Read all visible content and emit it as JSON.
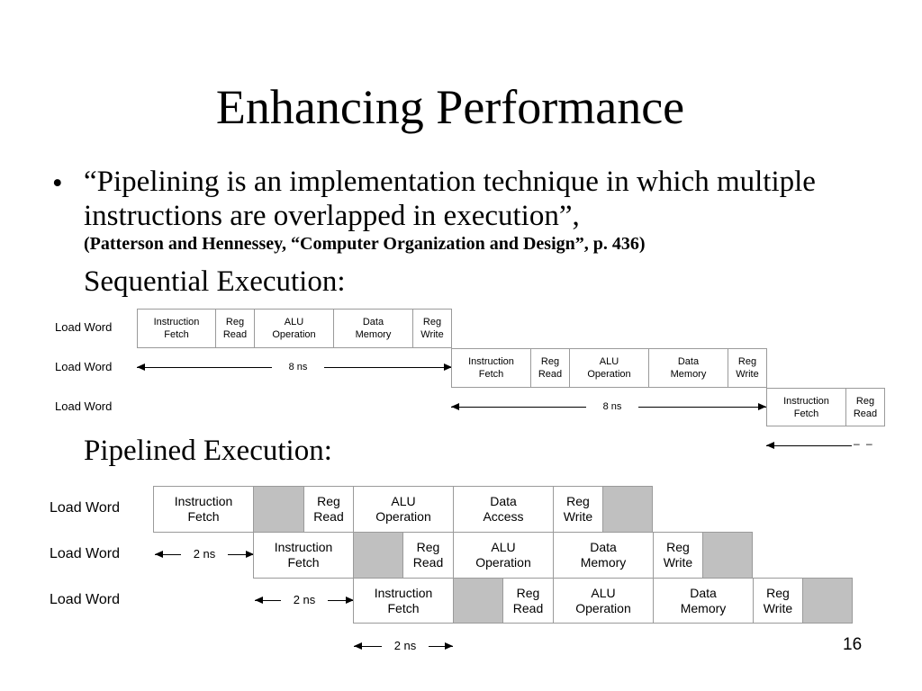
{
  "slide": {
    "title": "Enhancing Performance",
    "bullet_marker": "•",
    "quote": "“Pipelining is an implementation technique in which multiple instructions are overlapped in execution”,",
    "citation": "(Patterson and Hennessey, “Computer Organization and Design”, p. 436)",
    "page_number": "16"
  },
  "sequential": {
    "heading": "Sequential Execution:",
    "rows": [
      {
        "label": "Load Word",
        "stages": [
          "Instruction\nFetch",
          "Reg\nRead",
          "ALU\nOperation",
          "Data\nMemory",
          "Reg\nWrite"
        ]
      },
      {
        "label": "Load Word",
        "stages": [
          "Instruction\nFetch",
          "Reg\nRead",
          "ALU\nOperation",
          "Data\nMemory",
          "Reg\nWrite"
        ]
      },
      {
        "label": "Load Word",
        "stages": [
          "Instruction\nFetch",
          "Reg\nRead"
        ]
      }
    ],
    "arrows": [
      "8 ns",
      "8 ns"
    ],
    "continuation_marker": "– –"
  },
  "pipelined": {
    "heading": "Pipelined Execution:",
    "rows": [
      {
        "label": "Load Word",
        "stages": [
          "Instruction\nFetch",
          "",
          "Reg\nRead",
          "ALU\nOperation",
          "Data\nAccess",
          "Reg\nWrite",
          ""
        ]
      },
      {
        "label": "Load Word",
        "stages": [
          "Instruction\nFetch",
          "",
          "Reg\nRead",
          "ALU\nOperation",
          "Data\nMemory",
          "Reg\nWrite",
          ""
        ]
      },
      {
        "label": "Load Word",
        "stages": [
          "Instruction\nFetch",
          "",
          "Reg\nRead",
          "ALU\nOperation",
          "Data\nMemory",
          "Reg\nWrite",
          ""
        ]
      }
    ],
    "arrows": [
      "2 ns",
      "2 ns",
      "2 ns"
    ]
  },
  "colors": {
    "background": "#ffffff",
    "text": "#000000",
    "shaded_stage": "#c0c0c0",
    "box_border": "#9a9a9a"
  }
}
